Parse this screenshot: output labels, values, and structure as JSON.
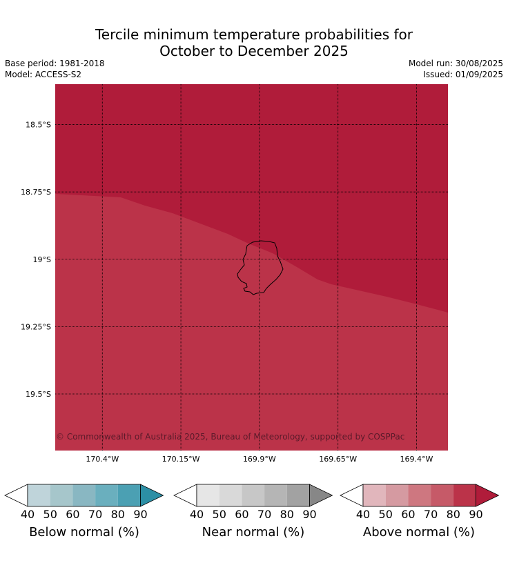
{
  "title_line1": "Tercile minimum temperature probabilities for",
  "title_line2": "October to December 2025",
  "base_period": "Base period: 1981-2018",
  "model": "Model: ACCESS-S2",
  "model_run": "Model run: 30/08/2025",
  "issued": "Issued: 01/09/2025",
  "copyright": "© Commonwealth of Australia 2025, Bureau of Meteorology, supported by COSPPac",
  "map": {
    "lon_range": [
      -170.55,
      -169.3
    ],
    "lat_range": [
      -19.71,
      -18.35
    ],
    "lon_ticks": [
      {
        "value": -170.4,
        "label": "170.4°W"
      },
      {
        "value": -170.15,
        "label": "170.15°W"
      },
      {
        "value": -169.9,
        "label": "169.9°W"
      },
      {
        "value": -169.65,
        "label": "169.65°W"
      },
      {
        "value": -169.4,
        "label": "169.4°W"
      }
    ],
    "lat_ticks": [
      {
        "value": -18.5,
        "label": "18.5°S"
      },
      {
        "value": -18.75,
        "label": "18.75°S"
      },
      {
        "value": -19.0,
        "label": "19°S"
      },
      {
        "value": -19.25,
        "label": "19.25°S"
      },
      {
        "value": -19.5,
        "label": "19.5°S"
      }
    ],
    "regions": [
      {
        "category": "Above normal",
        "level": "80-90",
        "color": "#bb3349"
      },
      {
        "category": "Above normal",
        "level": ">90",
        "color": "#b01c3a"
      }
    ]
  },
  "colorbars": [
    {
      "label": "Below normal (%)",
      "ticks": [
        "40",
        "50",
        "60",
        "70",
        "80",
        "90"
      ],
      "colors": [
        "#ffffff",
        "#bfd4da",
        "#a6c6cb",
        "#89b7c2",
        "#6aafbe",
        "#4ba0b3",
        "#2c8fa5"
      ]
    },
    {
      "label": "Near normal (%)",
      "ticks": [
        "40",
        "50",
        "60",
        "70",
        "80",
        "90"
      ],
      "colors": [
        "#ffffff",
        "#e6e6e6",
        "#d9d9d9",
        "#c7c7c7",
        "#b5b5b5",
        "#a2a2a2",
        "#878787"
      ]
    },
    {
      "label": "Above normal (%)",
      "ticks": [
        "40",
        "50",
        "60",
        "70",
        "80",
        "90"
      ],
      "colors": [
        "#ffffff",
        "#e1b6bc",
        "#d59aa1",
        "#ce7780",
        "#c65a68",
        "#bb3349",
        "#b01c3a"
      ]
    }
  ]
}
